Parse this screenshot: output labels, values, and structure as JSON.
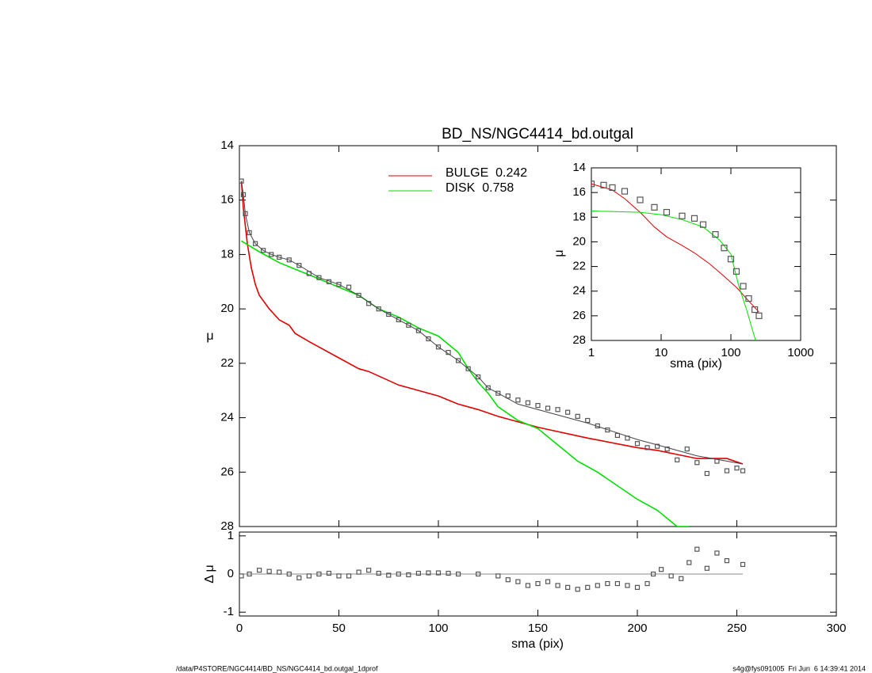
{
  "chart_data": [
    {
      "type": "line",
      "title": "BD_NS/NGC4414_bd.outgal",
      "ylabel": "μ",
      "xlim": [
        0,
        300
      ],
      "xticks": [
        0,
        50,
        100,
        150,
        200,
        250,
        300
      ],
      "xtick_labels": false,
      "ylim": [
        28,
        14
      ],
      "yticks": [
        14,
        16,
        18,
        20,
        22,
        24,
        26,
        28
      ],
      "legend": "top-center",
      "series": [
        {
          "name": "BULGE  0.242",
          "color": "#e00000",
          "style": "line",
          "x": [
            1,
            2,
            4,
            6,
            8,
            10,
            15,
            20,
            25,
            28,
            35,
            50,
            60,
            65,
            80,
            100,
            110,
            120,
            130,
            150,
            175,
            200,
            210,
            220,
            230,
            245,
            253
          ],
          "values": [
            15.3,
            16.3,
            17.6,
            18.5,
            19.1,
            19.5,
            20.0,
            20.4,
            20.6,
            20.9,
            21.2,
            21.8,
            22.2,
            22.3,
            22.8,
            23.2,
            23.5,
            23.7,
            23.95,
            24.35,
            24.75,
            25.1,
            25.2,
            25.35,
            25.5,
            25.5,
            25.7
          ]
        },
        {
          "name": "DISK  0.758",
          "color": "#00e000",
          "style": "line",
          "x": [
            1,
            10,
            20,
            30,
            40,
            50,
            60,
            70,
            80,
            90,
            100,
            110,
            115,
            120,
            125,
            130,
            140,
            150,
            160,
            170,
            180,
            190,
            200,
            210,
            220,
            226
          ],
          "values": [
            17.5,
            17.9,
            18.3,
            18.6,
            18.9,
            19.2,
            19.5,
            20.0,
            20.3,
            20.7,
            21.0,
            21.6,
            22.2,
            22.7,
            23.1,
            23.6,
            24.1,
            24.4,
            25.0,
            25.6,
            26.0,
            26.5,
            27.0,
            27.4,
            28.0,
            28.0
          ]
        },
        {
          "color": "#444444",
          "style": "line",
          "x": [
            1,
            2,
            3,
            5,
            8,
            12,
            16,
            20,
            25,
            30,
            40,
            50,
            60,
            70,
            80,
            90,
            100,
            110,
            120,
            125,
            140,
            160,
            175,
            200,
            210,
            230,
            253
          ],
          "values": [
            15.3,
            15.8,
            16.5,
            17.2,
            17.6,
            17.85,
            18.0,
            18.1,
            18.2,
            18.4,
            18.85,
            19.1,
            19.5,
            20.0,
            20.4,
            20.8,
            21.4,
            21.9,
            22.5,
            22.9,
            23.5,
            23.9,
            24.2,
            24.8,
            25.0,
            25.4,
            25.7
          ]
        },
        {
          "color": "#555555",
          "style": "points",
          "x": [
            1,
            2,
            3,
            5,
            8,
            12,
            16,
            20,
            25,
            30,
            35,
            40,
            45,
            50,
            55,
            60,
            65,
            70,
            75,
            80,
            85,
            90,
            95,
            100,
            105,
            110,
            115,
            120,
            125,
            130,
            135,
            140,
            145,
            150,
            155,
            160,
            165,
            170,
            175,
            180,
            185,
            190,
            195,
            200,
            205,
            210,
            215,
            220,
            225,
            230,
            235,
            240,
            245,
            250,
            253
          ],
          "values": [
            15.3,
            15.8,
            16.5,
            17.2,
            17.6,
            17.85,
            18.0,
            18.1,
            18.2,
            18.4,
            18.7,
            18.85,
            19.0,
            19.1,
            19.2,
            19.5,
            19.8,
            20.0,
            20.2,
            20.4,
            20.6,
            20.8,
            21.1,
            21.4,
            21.6,
            21.9,
            22.2,
            22.5,
            22.9,
            23.1,
            23.2,
            23.35,
            23.45,
            23.55,
            23.65,
            23.7,
            23.8,
            23.95,
            24.1,
            24.3,
            24.45,
            24.65,
            24.75,
            24.95,
            25.1,
            25.05,
            25.15,
            25.55,
            25.15,
            25.65,
            26.05,
            25.6,
            25.95,
            25.85,
            25.95
          ]
        }
      ]
    },
    {
      "type": "line",
      "xlabel": "sma (pix)",
      "ylabel": "μ",
      "xscale": "log",
      "xlim": [
        1,
        1000
      ],
      "xticks": [
        1,
        10,
        100,
        1000
      ],
      "xtick_labels": true,
      "ylim": [
        28,
        14
      ],
      "yticks": [
        14,
        16,
        18,
        20,
        22,
        24,
        26,
        28
      ],
      "series": [
        {
          "color": "#e00000",
          "style": "line",
          "x": [
            1,
            2,
            3,
            5,
            8,
            12,
            20,
            30,
            50,
            80,
            120,
            180,
            253
          ],
          "values": [
            15.3,
            15.8,
            16.5,
            17.6,
            18.8,
            19.6,
            20.3,
            20.9,
            21.8,
            22.8,
            23.7,
            24.8,
            25.7
          ]
        },
        {
          "color": "#00e000",
          "style": "line",
          "x": [
            1,
            5,
            10,
            20,
            40,
            70,
            100,
            130,
            170,
            200,
            226
          ],
          "values": [
            17.5,
            17.6,
            17.8,
            18.2,
            18.8,
            19.9,
            21.0,
            23.6,
            25.6,
            27.0,
            28.0
          ]
        },
        {
          "color": "#555555",
          "style": "points",
          "x": [
            1,
            1.5,
            2,
            3,
            5,
            8,
            12,
            20,
            30,
            40,
            60,
            80,
            100,
            120,
            150,
            180,
            220,
            253
          ],
          "values": [
            15.3,
            15.4,
            15.6,
            15.9,
            16.6,
            17.2,
            17.6,
            17.9,
            18.1,
            18.6,
            19.4,
            20.5,
            21.4,
            22.4,
            23.6,
            24.6,
            25.5,
            26.0
          ]
        }
      ]
    },
    {
      "type": "scatter",
      "xlabel": "sma (pix)",
      "ylabel": "Δ μ",
      "xlim": [
        0,
        300
      ],
      "xticks": [
        0,
        50,
        100,
        150,
        200,
        250,
        300
      ],
      "xtick_labels": true,
      "ylim": [
        -1.1,
        1.1
      ],
      "yticks": [
        -1,
        0,
        1
      ],
      "hline": 0,
      "hline_end": 253,
      "series": [
        {
          "color": "#555555",
          "style": "points",
          "x": [
            1,
            5,
            10,
            15,
            20,
            25,
            30,
            35,
            40,
            45,
            50,
            55,
            60,
            65,
            70,
            75,
            80,
            85,
            90,
            95,
            100,
            105,
            110,
            120,
            130,
            135,
            140,
            145,
            150,
            155,
            160,
            165,
            170,
            175,
            180,
            185,
            190,
            195,
            200,
            205,
            208,
            212,
            217,
            222,
            226,
            230,
            235,
            240,
            245,
            253
          ],
          "values": [
            -0.05,
            0.0,
            0.1,
            0.07,
            0.05,
            0.0,
            -0.1,
            -0.05,
            0.0,
            0.02,
            -0.05,
            -0.05,
            0.05,
            0.1,
            0.02,
            -0.03,
            0.0,
            -0.02,
            0.02,
            0.03,
            0.03,
            0.02,
            0.0,
            0.0,
            -0.05,
            -0.15,
            -0.2,
            -0.3,
            -0.25,
            -0.2,
            -0.3,
            -0.35,
            -0.4,
            -0.35,
            -0.3,
            -0.25,
            -0.25,
            -0.3,
            -0.35,
            -0.25,
            0.0,
            0.12,
            -0.05,
            -0.12,
            0.3,
            0.65,
            0.15,
            0.55,
            0.35,
            0.25
          ]
        }
      ]
    }
  ],
  "footer": {
    "left": "/data/P4STORE/NGC4414/BD_NS/NGC4414_bd.outgal_1dprof",
    "right": "s4g@fys091005  Fri Jun  6 14:39:41 2014"
  }
}
